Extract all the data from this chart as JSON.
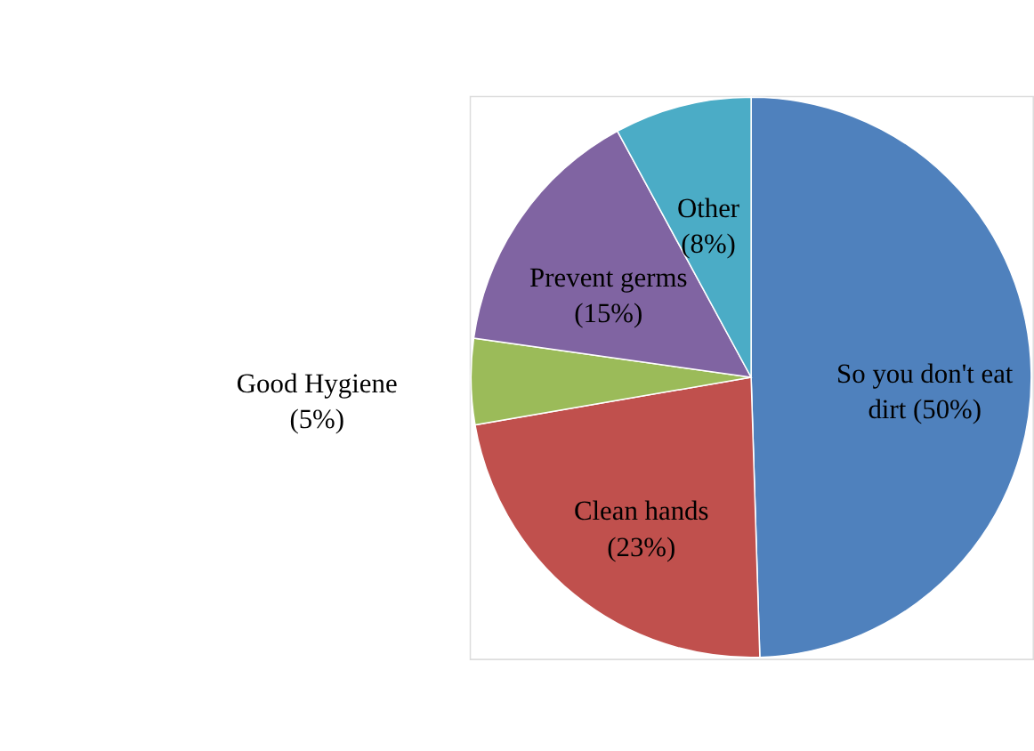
{
  "chart_data": {
    "type": "pie",
    "categories": [
      "So you don't eat dirt",
      "Clean hands",
      "Good Hygiene",
      "Prevent germs",
      "Other"
    ],
    "values": [
      50,
      23,
      5,
      15,
      8
    ],
    "value_labels": [
      "(50%)",
      "(23%)",
      "(5%)",
      "(15%)",
      "(8%)"
    ],
    "colors": [
      "#4f81bd",
      "#c0504d",
      "#9bbb59",
      "#8064a2",
      "#4bacc6"
    ],
    "legend": false
  }
}
